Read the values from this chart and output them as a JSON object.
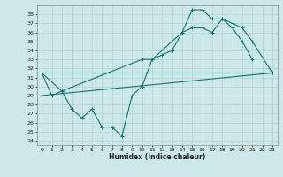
{
  "xlabel": "Humidex (Indice chaleur)",
  "bg_color": "#cce8e8",
  "line_color": "#1a7070",
  "grid_color": "#aacccc",
  "xlim": [
    -0.5,
    23.5
  ],
  "ylim": [
    23.5,
    39.0
  ],
  "xticks": [
    0,
    1,
    2,
    3,
    4,
    5,
    6,
    7,
    8,
    9,
    10,
    11,
    12,
    13,
    14,
    15,
    16,
    17,
    18,
    19,
    20,
    21,
    22,
    23
  ],
  "yticks": [
    24,
    25,
    26,
    27,
    28,
    29,
    30,
    31,
    32,
    33,
    34,
    35,
    36,
    37,
    38
  ],
  "line1_x": [
    0,
    1,
    2,
    3,
    4,
    5,
    6,
    7,
    8,
    9,
    10,
    11,
    12,
    13,
    14,
    15,
    16,
    17,
    18,
    19,
    20,
    21
  ],
  "line1_y": [
    31.5,
    29,
    29.5,
    27.5,
    26.5,
    27.5,
    25.5,
    25.5,
    24.5,
    29,
    30,
    33,
    33.5,
    34,
    36,
    36.5,
    36.5,
    36,
    37.5,
    36.5,
    35,
    33
  ],
  "line2_x": [
    0,
    2,
    10,
    11,
    14,
    15,
    16,
    17,
    18,
    19,
    20,
    21,
    23
  ],
  "line2_y": [
    31.5,
    29.5,
    33,
    33,
    36,
    38.5,
    38.5,
    37.5,
    37.5,
    37,
    36.5,
    35,
    31.5
  ],
  "line3_x": [
    0,
    23
  ],
  "line3_y": [
    29.0,
    31.5
  ],
  "line4_x": [
    0,
    23
  ],
  "line4_y": [
    31.5,
    31.5
  ]
}
